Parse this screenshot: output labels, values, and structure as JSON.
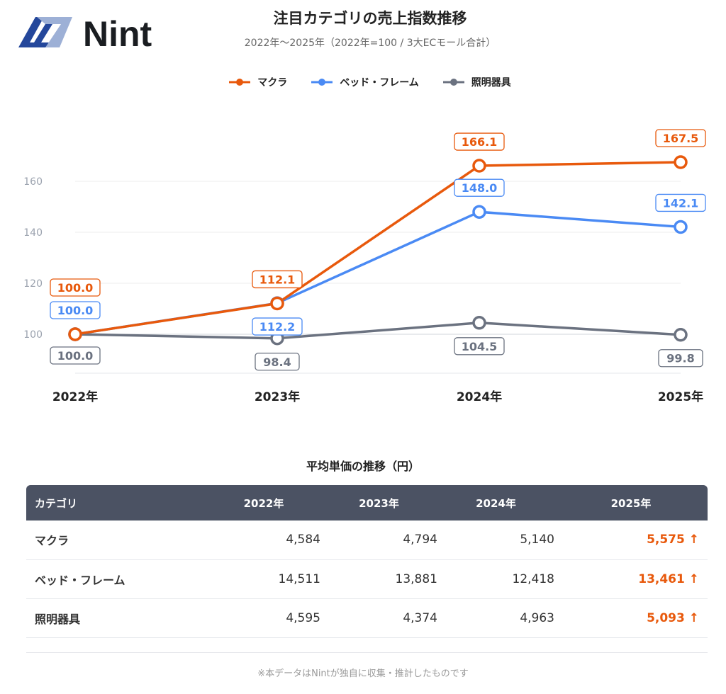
{
  "logo": {
    "text": "Nint"
  },
  "header": {
    "title": "注目カテゴリの売上指数推移",
    "subtitle": "2022年〜2025年（2022年=100 / 3大ECモール合計）"
  },
  "chart_data": {
    "type": "line",
    "title": "注目カテゴリの売上指数推移",
    "categories": [
      "2022年",
      "2023年",
      "2024年",
      "2025年"
    ],
    "yticks": [
      100,
      120,
      140,
      160
    ],
    "ytick_labels": [
      "100",
      "120",
      "140",
      "160"
    ],
    "ylim": [
      85,
      170
    ],
    "grid": true,
    "legend": "top",
    "series": [
      {
        "name": "マクラ",
        "color": "#e8590c",
        "values": [
          100.0,
          112.1,
          166.1,
          167.5
        ],
        "labels": [
          "100.0",
          "112.1",
          "166.1",
          "167.5"
        ],
        "label_pos": [
          "above",
          "above",
          "above",
          "above"
        ]
      },
      {
        "name": "ベッド・フレーム",
        "color": "#4a8af4",
        "values": [
          100.0,
          112.2,
          148.0,
          142.1
        ],
        "labels": [
          "100.0",
          "112.2",
          "148.0",
          "142.1"
        ],
        "label_pos": [
          "above2",
          "below",
          "above",
          "above"
        ]
      },
      {
        "name": "照明器具",
        "color": "#6b7280",
        "values": [
          100.0,
          98.4,
          104.5,
          99.8
        ],
        "labels": [
          "100.0",
          "98.4",
          "104.5",
          "99.8"
        ],
        "label_pos": [
          "below",
          "below",
          "below",
          "below"
        ]
      }
    ]
  },
  "table": {
    "title": "平均単価の推移（円）",
    "headers": [
      "カテゴリ",
      "2022年",
      "2023年",
      "2024年",
      "2025年"
    ],
    "rows": [
      {
        "name": "マクラ",
        "v": [
          "4,584",
          "4,794",
          "5,140"
        ],
        "last": "5,575 ↑"
      },
      {
        "name": "ベッド・フレーム",
        "v": [
          "14,511",
          "13,881",
          "12,418"
        ],
        "last": "13,461 ↑"
      },
      {
        "name": "照明器具",
        "v": [
          "4,595",
          "4,374",
          "4,963"
        ],
        "last": "5,093 ↑"
      }
    ]
  },
  "footer": "※本データはNintが独自に収集・推計したものです"
}
